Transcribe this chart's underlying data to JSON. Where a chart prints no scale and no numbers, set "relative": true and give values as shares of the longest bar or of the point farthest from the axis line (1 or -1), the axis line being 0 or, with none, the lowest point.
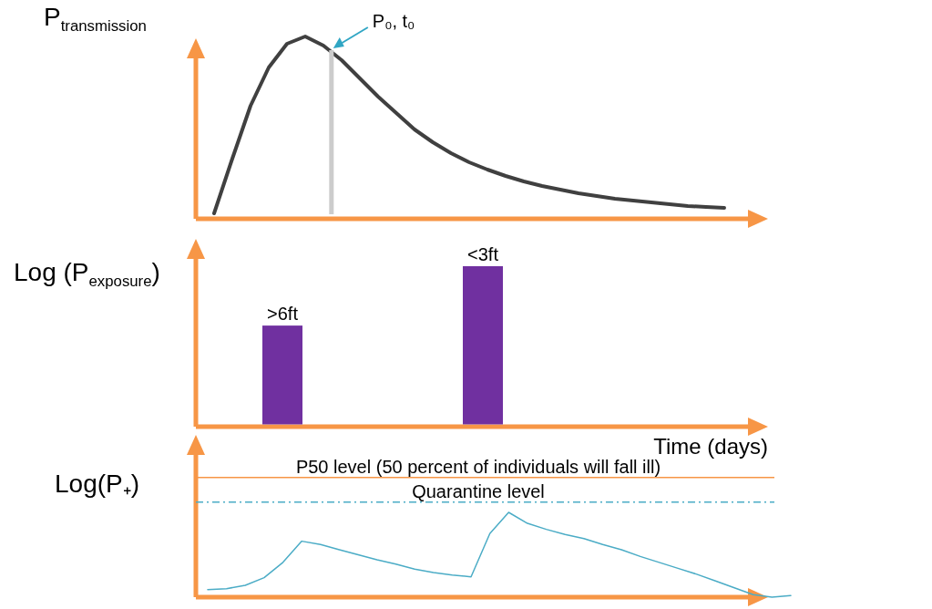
{
  "chart_data": [
    {
      "type": "line",
      "relative": true,
      "ylabel": "P$_{transmission}$",
      "annotations": [
        "P₀, t₀"
      ],
      "categories": [
        null,
        null,
        null,
        null,
        null,
        null,
        null,
        null,
        null,
        null,
        null,
        null,
        null,
        null,
        null,
        null,
        null,
        null,
        null,
        null,
        null,
        null,
        null,
        null,
        null,
        null,
        null,
        null,
        null
      ],
      "series": [
        {
          "color": "#404040",
          "values": [
            0.03,
            0.33,
            0.62,
            0.83,
            0.96,
            1,
            0.95,
            0.87,
            0.77,
            0.67,
            0.58,
            0.49,
            0.42,
            0.36,
            0.31,
            0.27,
            0.235,
            0.205,
            0.18,
            0.16,
            0.14,
            0.125,
            0.11,
            0.1,
            0.09,
            0.08,
            0.07,
            0.065,
            0.06
          ]
        }
      ]
    },
    {
      "type": "bar",
      "relative": true,
      "ylabel": "Log (P$_{exposure}$)",
      "xlabel": "Time (days)",
      "categories": [
        null,
        null
      ],
      "annotations": [
        {
          "text": ">6ft",
          "y": 0.63
        },
        {
          "text": "<3ft",
          "y": 1
        }
      ],
      "series": [
        {
          "color": "#7030a0",
          "values": [
            0.63,
            1
          ]
        }
      ]
    },
    {
      "type": "line",
      "relative": true,
      "ylabel": "Log(P₊)",
      "categories": [
        null,
        null,
        null,
        null,
        null,
        null,
        null,
        null,
        null,
        null,
        null,
        null,
        null,
        null,
        null,
        null,
        null,
        null,
        null,
        null,
        null,
        null,
        null,
        null,
        null,
        null,
        null,
        null,
        null,
        null,
        null,
        null
      ],
      "series": [
        {
          "color": "#4bacc6",
          "values": [
            0.09,
            0.1,
            0.14,
            0.23,
            0.41,
            0.66,
            0.62,
            0.56,
            0.5,
            0.44,
            0.39,
            0.33,
            0.29,
            0.26,
            0.24,
            0.75,
            1,
            0.87,
            0.8,
            0.74,
            0.69,
            0.62,
            0.56,
            0.48,
            0.41,
            0.34,
            0.27,
            0.19,
            0.11,
            0.03,
            0,
            0.02
          ]
        }
      ],
      "ref_lines": [
        {
          "axis": "y",
          "value": 1.41,
          "label": "P50 level (50 percent of individuals will fall ill)",
          "color": "#f79646",
          "line_style": "solid"
        },
        {
          "axis": "y",
          "value": 1.12,
          "label": "Quarantine level",
          "color": "#4bacc6",
          "line_style": "dashdot"
        }
      ]
    }
  ]
}
